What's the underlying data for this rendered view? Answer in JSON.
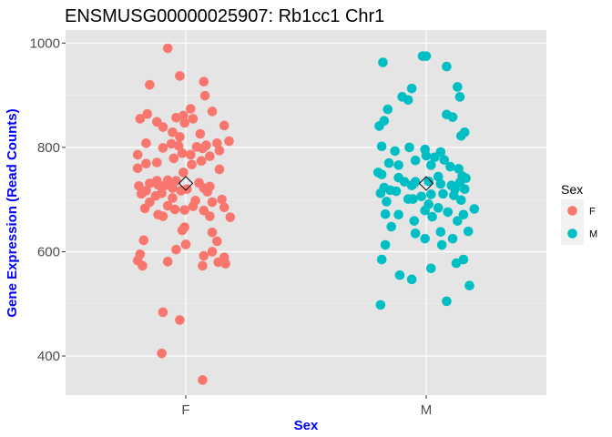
{
  "chart_data": {
    "type": "scatter",
    "title": "ENSMUSG00000025907: Rb1cc1 Chr1",
    "xlabel": "Sex",
    "ylabel": "Gene Expression (Read Counts)",
    "categories": [
      "F",
      "M"
    ],
    "ylim": [
      325,
      1025
    ],
    "yticks": [
      400,
      600,
      800,
      1000
    ],
    "grid": true,
    "background": "#e5e5e5",
    "legend": {
      "title": "Sex",
      "position": "right",
      "entries": [
        {
          "label": "F",
          "color": "#f8766d"
        },
        {
          "label": "M",
          "color": "#00bfc4"
        }
      ]
    },
    "series": [
      {
        "name": "F",
        "category": "F",
        "color": "#f8766d",
        "mean": 731,
        "points": [
          [
            -0.075,
            990
          ],
          [
            -0.025,
            937
          ],
          [
            0.075,
            926
          ],
          [
            -0.15,
            920
          ],
          [
            0.08,
            899
          ],
          [
            0.02,
            874
          ],
          [
            0.11,
            869
          ],
          [
            -0.16,
            864
          ],
          [
            -0.04,
            857
          ],
          [
            -0.01,
            861
          ],
          [
            -0.19,
            855
          ],
          [
            0.03,
            855
          ],
          [
            -0.12,
            849
          ],
          [
            0.16,
            842
          ],
          [
            -0.005,
            847
          ],
          [
            -0.095,
            839
          ],
          [
            -0.055,
            829
          ],
          [
            -0.025,
            820
          ],
          [
            0.06,
            826
          ],
          [
            -0.165,
            808
          ],
          [
            0.18,
            812
          ],
          [
            -0.06,
            807
          ],
          [
            0.13,
            808
          ],
          [
            -0.03,
            803
          ],
          [
            0.045,
            801
          ],
          [
            0.085,
            804
          ],
          [
            0.07,
            798
          ],
          [
            -0.095,
            799
          ],
          [
            0.14,
            794
          ],
          [
            -0.2,
            786
          ],
          [
            -0.015,
            789
          ],
          [
            0.02,
            786
          ],
          [
            0.1,
            783
          ],
          [
            -0.05,
            779
          ],
          [
            -0.165,
            769
          ],
          [
            0.065,
            774
          ],
          [
            0.025,
            767
          ],
          [
            -0.12,
            771
          ],
          [
            0.14,
            758
          ],
          [
            -0.2,
            760
          ],
          [
            -0.01,
            752
          ],
          [
            -0.075,
            737
          ],
          [
            -0.12,
            736
          ],
          [
            -0.04,
            736
          ],
          [
            0.055,
            732
          ],
          [
            -0.15,
            731
          ],
          [
            -0.115,
            728
          ],
          [
            -0.09,
            726
          ],
          [
            -0.195,
            726
          ],
          [
            0.1,
            725
          ],
          [
            -0.055,
            722
          ],
          [
            0.075,
            722
          ],
          [
            -0.165,
            717
          ],
          [
            0.005,
            720
          ],
          [
            -0.02,
            717
          ],
          [
            0.09,
            715
          ],
          [
            -0.1,
            712
          ],
          [
            -0.185,
            711
          ],
          [
            -0.125,
            707
          ],
          [
            -0.055,
            703
          ],
          [
            0.15,
            700
          ],
          [
            0.04,
            698
          ],
          [
            -0.15,
            695
          ],
          [
            0.11,
            695
          ],
          [
            0.03,
            687
          ],
          [
            -0.075,
            688
          ],
          [
            -0.17,
            683
          ],
          [
            0.16,
            685
          ],
          [
            -0.045,
            681
          ],
          [
            -0.005,
            680
          ],
          [
            0.075,
            679
          ],
          [
            -0.115,
            671
          ],
          [
            -0.095,
            668
          ],
          [
            0.1,
            668
          ],
          [
            0.185,
            666
          ],
          [
            -0.005,
            647
          ],
          [
            -0.015,
            641
          ],
          [
            0.11,
            637
          ],
          [
            -0.175,
            622
          ],
          [
            0.13,
            620
          ],
          [
            0,
            614
          ],
          [
            -0.04,
            604
          ],
          [
            0.11,
            600
          ],
          [
            -0.19,
            595
          ],
          [
            0.075,
            592
          ],
          [
            0.16,
            589
          ],
          [
            0.135,
            580
          ],
          [
            -0.2,
            583
          ],
          [
            -0.075,
            581
          ],
          [
            0.165,
            577
          ],
          [
            0.07,
            573
          ],
          [
            -0.18,
            573
          ],
          [
            -0.095,
            484
          ],
          [
            -0.025,
            469
          ],
          [
            -0.1,
            405
          ],
          [
            0.07,
            354
          ]
        ]
      },
      {
        "name": "M",
        "category": "M",
        "color": "#00bfc4",
        "mean": 731,
        "points": [
          [
            -0.015,
            975
          ],
          [
            0.0,
            975
          ],
          [
            -0.18,
            963
          ],
          [
            0.085,
            955
          ],
          [
            -0.06,
            913
          ],
          [
            0.13,
            916
          ],
          [
            -0.1,
            897
          ],
          [
            0.14,
            897
          ],
          [
            -0.075,
            891
          ],
          [
            -0.16,
            873
          ],
          [
            0.085,
            863
          ],
          [
            0.11,
            858
          ],
          [
            -0.175,
            851
          ],
          [
            -0.195,
            841
          ],
          [
            0.16,
            829
          ],
          [
            -0.185,
            802
          ],
          [
            0.145,
            822
          ],
          [
            -0.07,
            800
          ],
          [
            0.06,
            791
          ],
          [
            -0.005,
            796
          ],
          [
            -0.13,
            793
          ],
          [
            0.0,
            784
          ],
          [
            0.035,
            781
          ],
          [
            -0.155,
            770
          ],
          [
            -0.045,
            775
          ],
          [
            0.075,
            776
          ],
          [
            0.02,
            766
          ],
          [
            -0.115,
            766
          ],
          [
            0.1,
            763
          ],
          [
            0.135,
            759
          ],
          [
            -0.2,
            752
          ],
          [
            0.05,
            744
          ],
          [
            -0.185,
            748
          ],
          [
            -0.115,
            742
          ],
          [
            0.15,
            745
          ],
          [
            0.165,
            741
          ],
          [
            -0.045,
            734
          ],
          [
            -0.09,
            734
          ],
          [
            0.01,
            735
          ],
          [
            0.14,
            733
          ],
          [
            -0.06,
            727
          ],
          [
            0.06,
            730
          ],
          [
            -0.175,
            723
          ],
          [
            0.105,
            727
          ],
          [
            0.12,
            720
          ],
          [
            0.16,
            720
          ],
          [
            -0.15,
            718
          ],
          [
            -0.125,
            716
          ],
          [
            -0.19,
            712
          ],
          [
            0.07,
            711
          ],
          [
            0.02,
            710
          ],
          [
            -0.02,
            706
          ],
          [
            0.115,
            708
          ],
          [
            -0.055,
            701
          ],
          [
            -0.075,
            701
          ],
          [
            0.145,
            699
          ],
          [
            -0.165,
            696
          ],
          [
            0.01,
            691
          ],
          [
            0.05,
            684
          ],
          [
            0.2,
            682
          ],
          [
            -0.005,
            679
          ],
          [
            0.09,
            676
          ],
          [
            -0.17,
            672
          ],
          [
            -0.115,
            671
          ],
          [
            0.155,
            671
          ],
          [
            0.025,
            667
          ],
          [
            -0.05,
            659
          ],
          [
            0.13,
            659
          ],
          [
            -0.145,
            648
          ],
          [
            0.175,
            639
          ],
          [
            0.06,
            638
          ],
          [
            -0.045,
            635
          ],
          [
            -0.005,
            625
          ],
          [
            0.11,
            625
          ],
          [
            -0.17,
            613
          ],
          [
            0.065,
            613
          ],
          [
            0.155,
            585
          ],
          [
            0.125,
            578
          ],
          [
            -0.185,
            585
          ],
          [
            0.02,
            568
          ],
          [
            -0.11,
            555
          ],
          [
            0.18,
            535
          ],
          [
            -0.06,
            547
          ],
          [
            0.085,
            505
          ],
          [
            -0.19,
            498
          ]
        ]
      }
    ]
  }
}
